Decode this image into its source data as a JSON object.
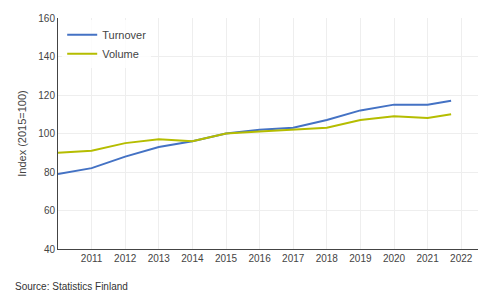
{
  "chart_data": {
    "type": "line",
    "x": [
      2010,
      2011,
      2012,
      2013,
      2014,
      2015,
      2016,
      2017,
      2018,
      2019,
      2020,
      2021,
      2021.7
    ],
    "series": [
      {
        "name": "Turnover",
        "color": "#4472c4",
        "values": [
          79,
          82,
          88,
          93,
          96,
          100,
          102,
          103,
          107,
          112,
          115,
          115,
          117
        ]
      },
      {
        "name": "Volume",
        "color": "#b5bd00",
        "values": [
          90,
          91,
          95,
          97,
          96,
          100,
          101,
          102,
          103,
          107,
          109,
          108,
          110
        ]
      }
    ],
    "xlim": [
      2010.0,
      2022.5
    ],
    "xticks": [
      2011,
      2012,
      2013,
      2014,
      2015,
      2016,
      2017,
      2018,
      2019,
      2020,
      2021,
      2022
    ],
    "ylim": [
      40,
      160
    ],
    "yticks": [
      40,
      60,
      80,
      100,
      120,
      140,
      160
    ],
    "ylabel": "Index (2015=100)",
    "annotations": [
      "Source: Statistics Finland"
    ],
    "grid": true,
    "legend": "upper left"
  }
}
